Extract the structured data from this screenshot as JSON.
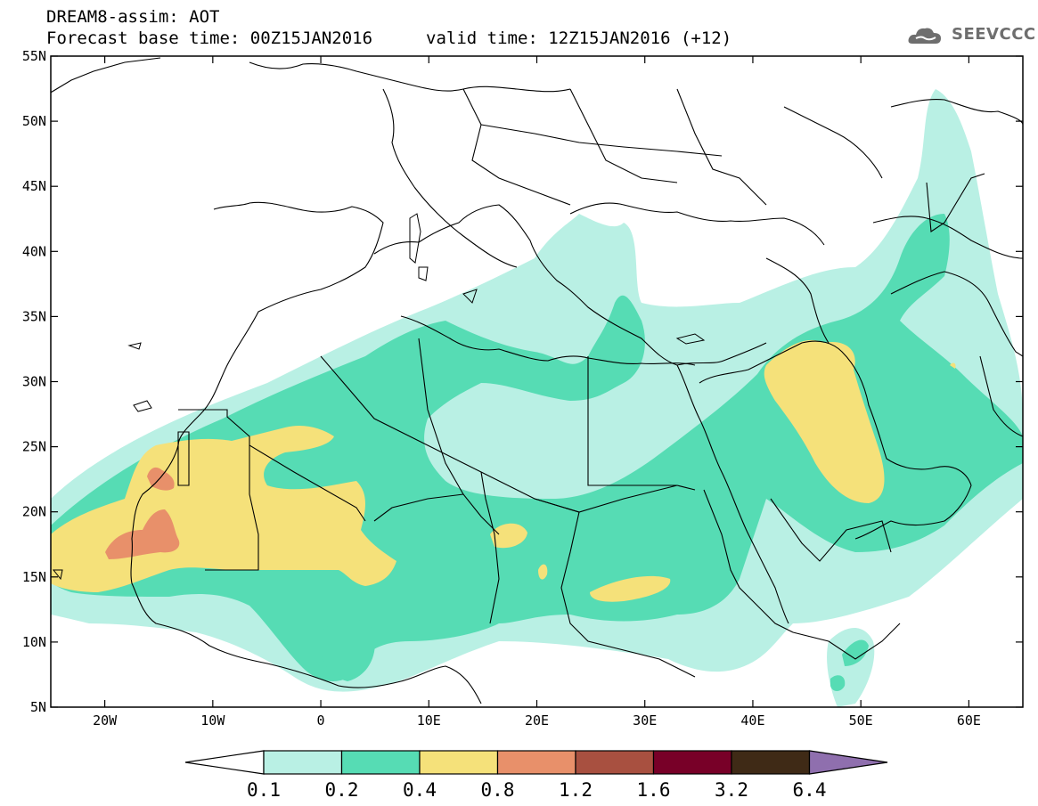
{
  "header": {
    "model_title": "DREAM8-assim: AOT",
    "base_time": "Forecast base time: 00Z15JAN2016",
    "valid_time": "valid time: 12Z15JAN2016 (+12)"
  },
  "logo": {
    "text": "SEEVCCC",
    "icon": "cloud-icon"
  },
  "map": {
    "projection": "lat-lon",
    "lon_range": [
      -25,
      65
    ],
    "lat_range": [
      5,
      55
    ],
    "lon_ticks": [
      {
        "value": -20,
        "label": "20W"
      },
      {
        "value": -10,
        "label": "10W"
      },
      {
        "value": 0,
        "label": "0"
      },
      {
        "value": 10,
        "label": "10E"
      },
      {
        "value": 20,
        "label": "20E"
      },
      {
        "value": 30,
        "label": "30E"
      },
      {
        "value": 40,
        "label": "40E"
      },
      {
        "value": 50,
        "label": "50E"
      },
      {
        "value": 60,
        "label": "60E"
      }
    ],
    "lat_ticks": [
      {
        "value": 5,
        "label": "5N"
      },
      {
        "value": 10,
        "label": "10N"
      },
      {
        "value": 15,
        "label": "15N"
      },
      {
        "value": 20,
        "label": "20N"
      },
      {
        "value": 25,
        "label": "25N"
      },
      {
        "value": 30,
        "label": "30N"
      },
      {
        "value": 35,
        "label": "35N"
      },
      {
        "value": 40,
        "label": "40N"
      },
      {
        "value": 45,
        "label": "45N"
      },
      {
        "value": 50,
        "label": "50N"
      },
      {
        "value": 55,
        "label": "55N"
      }
    ],
    "colors": {
      "c0_1": "#b9f0e4",
      "c0_2": "#56dcb4",
      "c0_4": "#f5e17a",
      "c0_8": "#e8906a",
      "c1_2": "#a85040",
      "c1_6": "#780028",
      "c3_2": "#3f2a16",
      "c6_4": "#8f6fae",
      "border": "#000000"
    }
  },
  "colorbar": {
    "labels": [
      "0.1",
      "0.2",
      "0.4",
      "0.8",
      "1.2",
      "1.6",
      "3.2",
      "6.4"
    ],
    "colors": [
      "#b9f0e4",
      "#56dcb4",
      "#f5e17a",
      "#e8906a",
      "#a85040",
      "#780028",
      "#3f2a16"
    ],
    "low_color": "#ffffff",
    "high_color": "#8f6fae"
  }
}
